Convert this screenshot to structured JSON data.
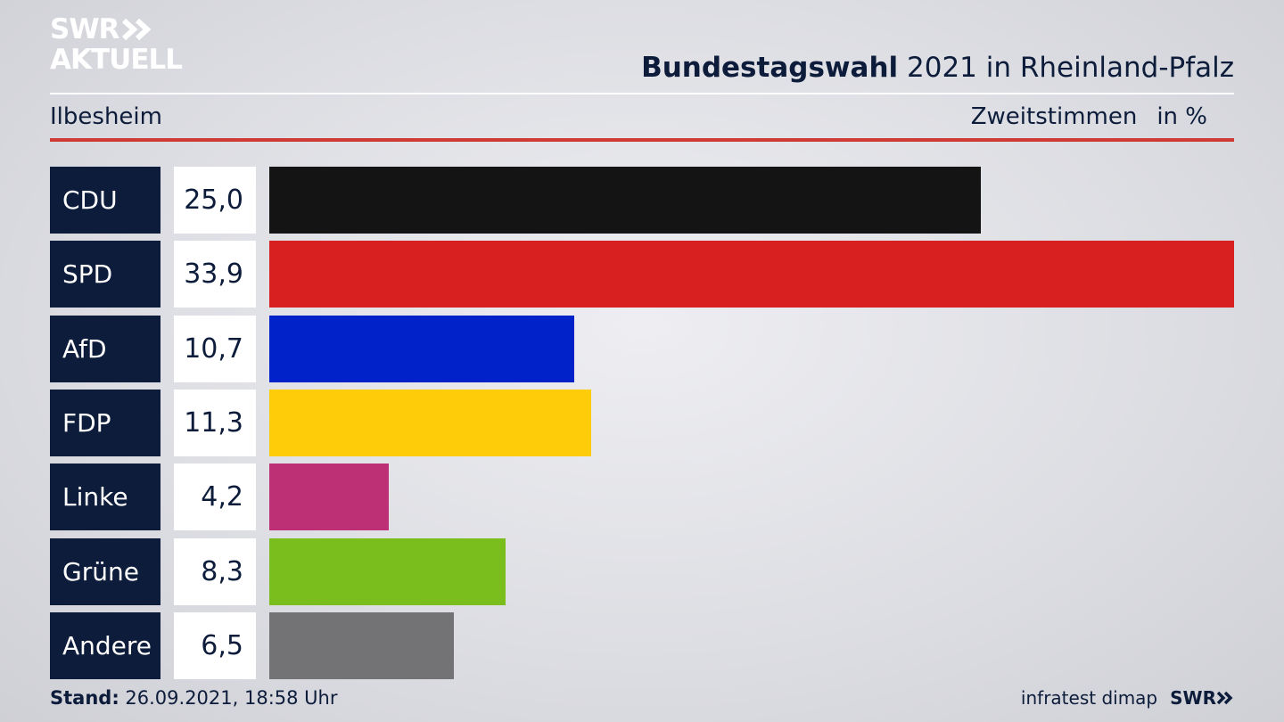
{
  "header": {
    "logo_line1": "SWR",
    "logo_line2": "AKTUELL",
    "title_bold": "Bundestagswahl",
    "title_rest": " 2021 in Rheinland-Pfalz",
    "location": "Ilbesheim",
    "measure": "Zweitstimmen",
    "unit": "in %"
  },
  "chart_data": {
    "type": "bar",
    "orientation": "horizontal",
    "categories": [
      "CDU",
      "SPD",
      "AfD",
      "FDP",
      "Linke",
      "Grüne",
      "Andere"
    ],
    "values": [
      25.0,
      33.9,
      10.7,
      11.3,
      4.2,
      8.3,
      6.5
    ],
    "value_labels": [
      "25,0",
      "33,9",
      "10,7",
      "11,3",
      "4,2",
      "8,3",
      "6,5"
    ],
    "colors": [
      "#141414",
      "#d82020",
      "#0022c8",
      "#ffcc0a",
      "#be3075",
      "#79be1c",
      "#737375"
    ],
    "xlim": [
      0,
      33.9
    ],
    "grid": false,
    "legend": "none"
  },
  "footer": {
    "stand_label": "Stand:",
    "stand_value": " 26.09.2021, 18:58 Uhr",
    "source": "infratest dimap",
    "brand": "SWR"
  }
}
